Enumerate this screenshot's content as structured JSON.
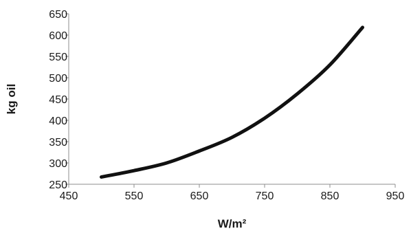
{
  "chart_data": {
    "type": "line",
    "xlabel": "W/m²",
    "ylabel": "kg oil",
    "xlim": [
      450,
      950
    ],
    "ylim": [
      250,
      650
    ],
    "x_ticks": [
      450,
      550,
      650,
      750,
      850,
      950
    ],
    "y_ticks": [
      250,
      300,
      350,
      400,
      450,
      500,
      550,
      600,
      650
    ],
    "grid": false,
    "legend": "none",
    "series": [
      {
        "color": "#111111",
        "x": [
          500,
          550,
          600,
          650,
          700,
          750,
          800,
          850,
          900
        ],
        "y": [
          267,
          282,
          300,
          328,
          360,
          405,
          462,
          530,
          618
        ]
      }
    ]
  }
}
